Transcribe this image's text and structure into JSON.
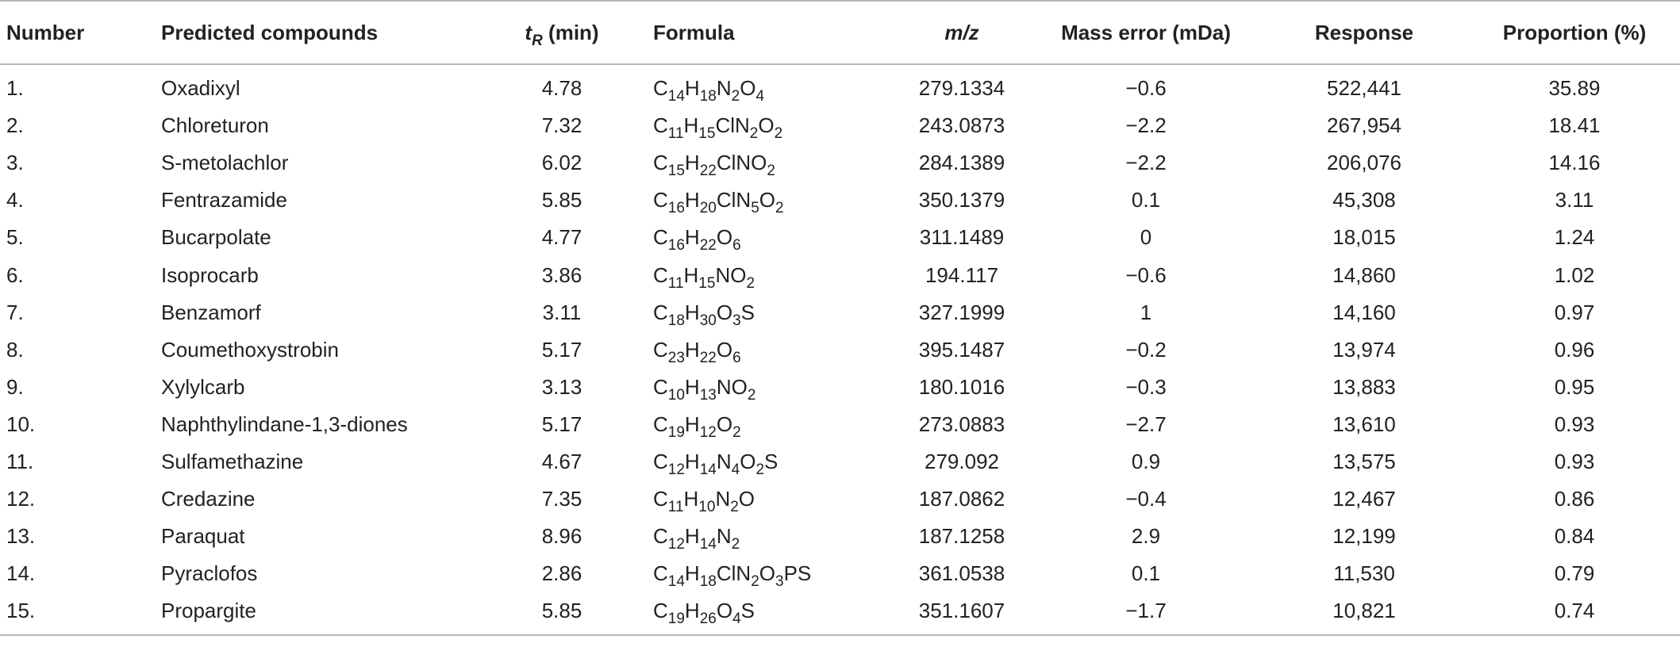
{
  "table": {
    "headers": {
      "number": "Number",
      "compound": "Predicted compounds",
      "tr_symbol": "t",
      "tr_sub": "R",
      "tr_unit": " (min)",
      "formula": "Formula",
      "mz": "m/z",
      "mass_error": "Mass error (mDa)",
      "response": "Response",
      "proportion": "Proportion (%)"
    },
    "rows": [
      {
        "number": "1.",
        "compound": "Oxadixyl",
        "tr": "4.78",
        "formula": [
          [
            "C",
            ""
          ],
          [
            "14",
            "s"
          ],
          [
            "H",
            ""
          ],
          [
            "18",
            "s"
          ],
          [
            "N",
            ""
          ],
          [
            "2",
            "s"
          ],
          [
            "O",
            ""
          ],
          [
            "4",
            "s"
          ]
        ],
        "mz": "279.1334",
        "mass_error": "−0.6",
        "response": "522,441",
        "proportion": "35.89"
      },
      {
        "number": "2.",
        "compound": "Chloreturon",
        "tr": "7.32",
        "formula": [
          [
            "C",
            ""
          ],
          [
            "11",
            "s"
          ],
          [
            "H",
            ""
          ],
          [
            "15",
            "s"
          ],
          [
            "ClN",
            ""
          ],
          [
            "2",
            "s"
          ],
          [
            "O",
            ""
          ],
          [
            "2",
            "s"
          ]
        ],
        "mz": "243.0873",
        "mass_error": "−2.2",
        "response": "267,954",
        "proportion": "18.41"
      },
      {
        "number": "3.",
        "compound": "S-metolachlor",
        "tr": "6.02",
        "formula": [
          [
            "C",
            ""
          ],
          [
            "15",
            "s"
          ],
          [
            "H",
            ""
          ],
          [
            "22",
            "s"
          ],
          [
            "ClNO",
            ""
          ],
          [
            "2",
            "s"
          ]
        ],
        "mz": "284.1389",
        "mass_error": "−2.2",
        "response": "206,076",
        "proportion": "14.16"
      },
      {
        "number": "4.",
        "compound": "Fentrazamide",
        "tr": "5.85",
        "formula": [
          [
            "C",
            ""
          ],
          [
            "16",
            "s"
          ],
          [
            "H",
            ""
          ],
          [
            "20",
            "s"
          ],
          [
            "ClN",
            ""
          ],
          [
            "5",
            "s"
          ],
          [
            "O",
            ""
          ],
          [
            "2",
            "s"
          ]
        ],
        "mz": "350.1379",
        "mass_error": "0.1",
        "response": "45,308",
        "proportion": "3.11"
      },
      {
        "number": "5.",
        "compound": "Bucarpolate",
        "tr": "4.77",
        "formula": [
          [
            "C",
            ""
          ],
          [
            "16",
            "s"
          ],
          [
            "H",
            ""
          ],
          [
            "22",
            "s"
          ],
          [
            "O",
            ""
          ],
          [
            "6",
            "s"
          ]
        ],
        "mz": "311.1489",
        "mass_error": "0",
        "response": "18,015",
        "proportion": "1.24"
      },
      {
        "number": "6.",
        "compound": "Isoprocarb",
        "tr": "3.86",
        "formula": [
          [
            "C",
            ""
          ],
          [
            "11",
            "s"
          ],
          [
            "H",
            ""
          ],
          [
            "15",
            "s"
          ],
          [
            "NO",
            ""
          ],
          [
            "2",
            "s"
          ]
        ],
        "mz": "194.117",
        "mass_error": "−0.6",
        "response": "14,860",
        "proportion": "1.02"
      },
      {
        "number": "7.",
        "compound": "Benzamorf",
        "tr": "3.11",
        "formula": [
          [
            "C",
            ""
          ],
          [
            "18",
            "s"
          ],
          [
            "H",
            ""
          ],
          [
            "30",
            "s"
          ],
          [
            "O",
            ""
          ],
          [
            "3",
            "s"
          ],
          [
            "S",
            ""
          ]
        ],
        "mz": "327.1999",
        "mass_error": "1",
        "response": "14,160",
        "proportion": "0.97"
      },
      {
        "number": "8.",
        "compound": "Coumethoxystrobin",
        "tr": "5.17",
        "formula": [
          [
            "C",
            ""
          ],
          [
            "23",
            "s"
          ],
          [
            "H",
            ""
          ],
          [
            "22",
            "s"
          ],
          [
            "O",
            ""
          ],
          [
            "6",
            "s"
          ]
        ],
        "mz": "395.1487",
        "mass_error": "−0.2",
        "response": "13,974",
        "proportion": "0.96"
      },
      {
        "number": "9.",
        "compound": "Xylylcarb",
        "tr": "3.13",
        "formula": [
          [
            "C",
            ""
          ],
          [
            "10",
            "s"
          ],
          [
            "H",
            ""
          ],
          [
            "13",
            "s"
          ],
          [
            "NO",
            ""
          ],
          [
            "2",
            "s"
          ]
        ],
        "mz": "180.1016",
        "mass_error": "−0.3",
        "response": "13,883",
        "proportion": "0.95"
      },
      {
        "number": "10.",
        "compound": "Naphthylindane-1,3-diones",
        "tr": "5.17",
        "formula": [
          [
            "C",
            ""
          ],
          [
            "19",
            "s"
          ],
          [
            "H",
            ""
          ],
          [
            "12",
            "s"
          ],
          [
            "O",
            ""
          ],
          [
            "2",
            "s"
          ]
        ],
        "mz": "273.0883",
        "mass_error": "−2.7",
        "response": "13,610",
        "proportion": "0.93"
      },
      {
        "number": "11.",
        "compound": "Sulfamethazine",
        "tr": "4.67",
        "formula": [
          [
            "C",
            ""
          ],
          [
            "12",
            "s"
          ],
          [
            "H",
            ""
          ],
          [
            "14",
            "s"
          ],
          [
            "N",
            ""
          ],
          [
            "4",
            "s"
          ],
          [
            "O",
            ""
          ],
          [
            "2",
            "s"
          ],
          [
            "S",
            ""
          ]
        ],
        "mz": "279.092",
        "mass_error": "0.9",
        "response": "13,575",
        "proportion": "0.93"
      },
      {
        "number": "12.",
        "compound": "Credazine",
        "tr": "7.35",
        "formula": [
          [
            "C",
            ""
          ],
          [
            "11",
            "s"
          ],
          [
            "H",
            ""
          ],
          [
            "10",
            "s"
          ],
          [
            "N",
            ""
          ],
          [
            "2",
            "s"
          ],
          [
            "O",
            ""
          ]
        ],
        "mz": "187.0862",
        "mass_error": "−0.4",
        "response": "12,467",
        "proportion": "0.86"
      },
      {
        "number": "13.",
        "compound": "Paraquat",
        "tr": "8.96",
        "formula": [
          [
            "C",
            ""
          ],
          [
            "12",
            "s"
          ],
          [
            "H",
            ""
          ],
          [
            "14",
            "s"
          ],
          [
            "N",
            ""
          ],
          [
            "2",
            "s"
          ]
        ],
        "mz": "187.1258",
        "mass_error": "2.9",
        "response": "12,199",
        "proportion": "0.84"
      },
      {
        "number": "14.",
        "compound": "Pyraclofos",
        "tr": "2.86",
        "formula": [
          [
            "C",
            ""
          ],
          [
            "14",
            "s"
          ],
          [
            "H",
            ""
          ],
          [
            "18",
            "s"
          ],
          [
            "ClN",
            ""
          ],
          [
            "2",
            "s"
          ],
          [
            "O",
            ""
          ],
          [
            "3",
            "s"
          ],
          [
            "PS",
            ""
          ]
        ],
        "mz": "361.0538",
        "mass_error": "0.1",
        "response": "11,530",
        "proportion": "0.79"
      },
      {
        "number": "15.",
        "compound": "Propargite",
        "tr": "5.85",
        "formula": [
          [
            "C",
            ""
          ],
          [
            "19",
            "s"
          ],
          [
            "H",
            ""
          ],
          [
            "26",
            "s"
          ],
          [
            "O",
            ""
          ],
          [
            "4",
            "s"
          ],
          [
            "S",
            ""
          ]
        ],
        "mz": "351.1607",
        "mass_error": "−1.7",
        "response": "10,821",
        "proportion": "0.74"
      }
    ]
  }
}
